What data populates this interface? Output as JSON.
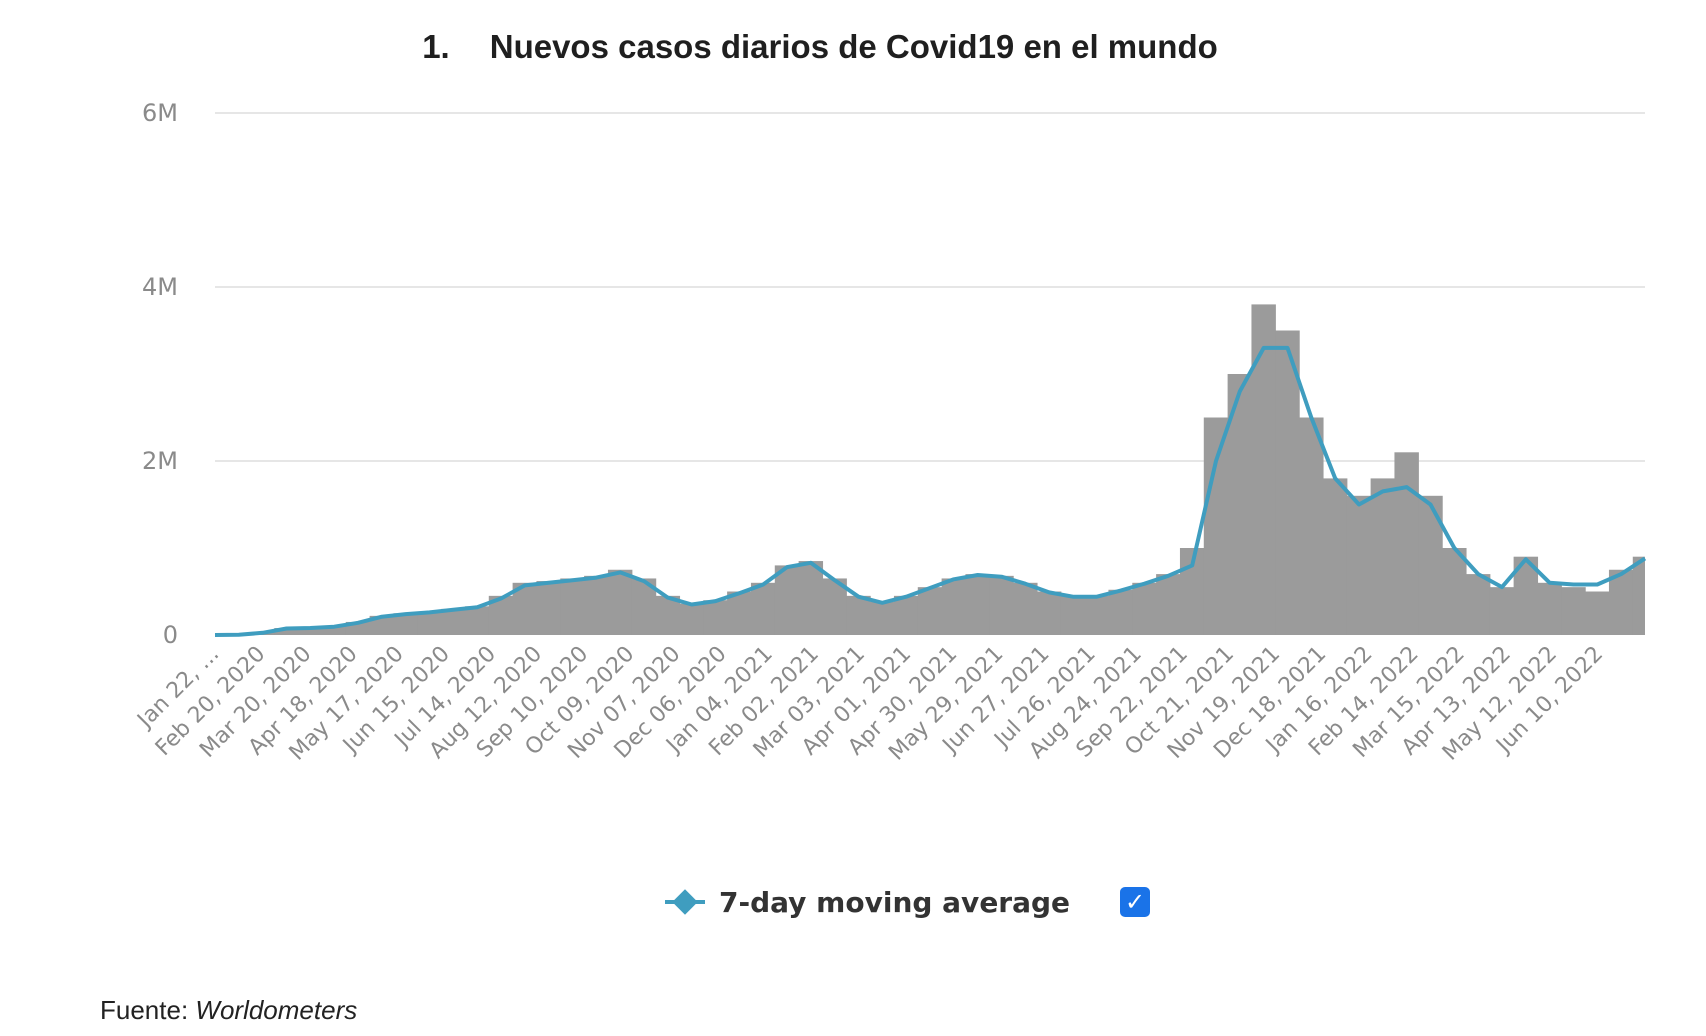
{
  "title": {
    "number": "1.",
    "text": "Nuevos casos diarios de Covid19 en el mundo"
  },
  "colors": {
    "bars": "#9b9b9b",
    "line": "#3f9dbf",
    "grid": "#e6e6e6",
    "checkbox": "#1a73e8"
  },
  "legend": {
    "label": "7-day moving average",
    "checked": true,
    "check_glyph": "✓"
  },
  "source": {
    "prefix": "Fuente: ",
    "name": "Worldometers"
  },
  "chart_data": {
    "type": "bar",
    "title": "1. Nuevos casos diarios de Covid19 en el mundo",
    "xlabel": "",
    "ylabel": "",
    "ylim": [
      0,
      6000000
    ],
    "yticks": [
      {
        "value": 0,
        "label": "0"
      },
      {
        "value": 2000000,
        "label": "2M"
      },
      {
        "value": 4000000,
        "label": "4M"
      },
      {
        "value": 6000000,
        "label": "6M"
      }
    ],
    "xticks": [
      "Jan 22, ...",
      "Feb 20, 2020",
      "Mar 20, 2020",
      "Apr 18, 2020",
      "May 17, 2020",
      "Jun 15, 2020",
      "Jul 14, 2020",
      "Aug 12, 2020",
      "Sep 10, 2020",
      "Oct 09, 2020",
      "Nov 07, 2020",
      "Dec 06, 2020",
      "Jan 04, 2021",
      "Feb 02, 2021",
      "Mar 03, 2021",
      "Apr 01, 2021",
      "Apr 30, 2021",
      "May 29, 2021",
      "Jun 27, 2021",
      "Jul 26, 2021",
      "Aug 24, 2021",
      "Sep 22, 2021",
      "Oct 21, 2021",
      "Nov 19, 2021",
      "Dec 18, 2021",
      "Jan 16, 2022",
      "Feb 14, 2022",
      "Mar 15, 2022",
      "Apr 13, 2022",
      "May 12, 2022",
      "Jun 10, 2022"
    ],
    "grid": true,
    "legend_position": "bottom-center",
    "series": [
      {
        "name": "",
        "type": "bar",
        "values": [
          0,
          3000,
          30000,
          80000,
          80000,
          100000,
          150000,
          220000,
          250000,
          270000,
          300000,
          330000,
          450000,
          600000,
          620000,
          650000,
          680000,
          750000,
          650000,
          450000,
          360000,
          400000,
          500000,
          600000,
          800000,
          850000,
          650000,
          450000,
          380000,
          450000,
          550000,
          650000,
          700000,
          680000,
          600000,
          500000,
          450000,
          450000,
          520000,
          600000,
          700000,
          1000000,
          2500000,
          3000000,
          3800000,
          3500000,
          2500000,
          1800000,
          1600000,
          1800000,
          2100000,
          1600000,
          1000000,
          700000,
          550000,
          900000,
          600000,
          550000,
          500000,
          750000,
          900000
        ]
      },
      {
        "name": "7-day moving average",
        "type": "line",
        "values": [
          0,
          2000,
          25000,
          75000,
          80000,
          95000,
          140000,
          210000,
          240000,
          260000,
          290000,
          320000,
          420000,
          570000,
          600000,
          630000,
          660000,
          720000,
          620000,
          430000,
          350000,
          390000,
          480000,
          580000,
          780000,
          830000,
          630000,
          440000,
          370000,
          440000,
          540000,
          640000,
          690000,
          670000,
          590000,
          490000,
          440000,
          440000,
          510000,
          590000,
          680000,
          800000,
          2000000,
          2800000,
          3300000,
          3300000,
          2500000,
          1800000,
          1500000,
          1650000,
          1700000,
          1500000,
          1000000,
          700000,
          550000,
          870000,
          600000,
          580000,
          580000,
          700000,
          880000
        ]
      }
    ]
  }
}
